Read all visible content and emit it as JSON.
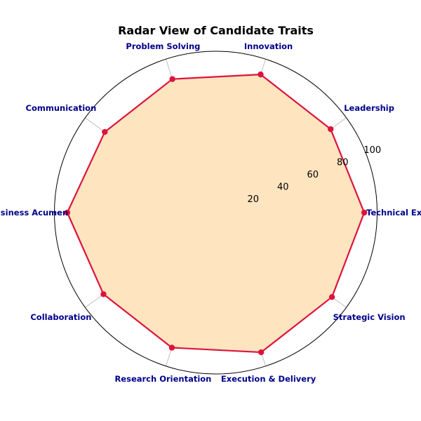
{
  "chart_data": {
    "type": "radar",
    "title": "Radar View of Candidate Traits",
    "categories": [
      "Technical Exper",
      "Leadership",
      "Innovation",
      "Problem Solving",
      "Communication",
      "Business Acumen",
      "Collaboration",
      "Research Orientation",
      "Execution & Delivery",
      "Strategic Vision"
    ],
    "series": [
      {
        "values": [
          92,
          88,
          90,
          87,
          85,
          92,
          86,
          88,
          91,
          89
        ]
      }
    ],
    "rlim": [
      0,
      100
    ],
    "r_ticks": [
      20,
      40,
      60,
      80,
      100
    ],
    "grid": true,
    "colors": {
      "line": "#dc143c",
      "fill": "#ffe4c0",
      "label": "#00008b",
      "grid": "#b0b0b0",
      "outer_ring": "#000000"
    }
  }
}
